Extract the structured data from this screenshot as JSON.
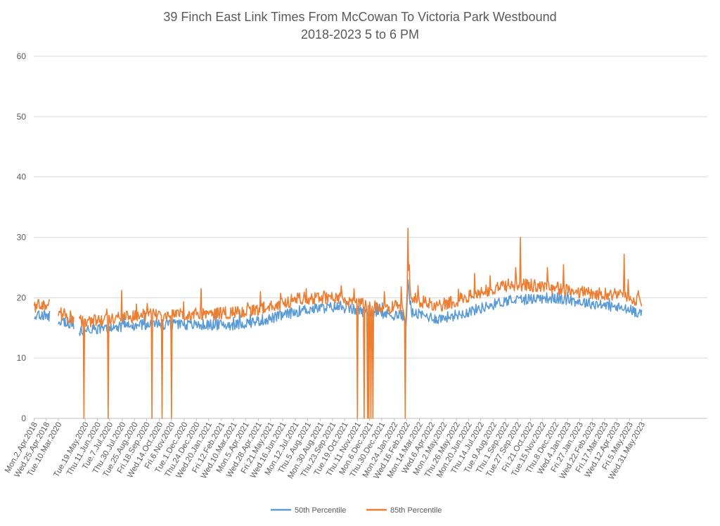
{
  "chart_data": {
    "type": "line",
    "title_lines": [
      "39 Finch East Link Times From McCowan To Victoria Park Westbound",
      "2018-2023 5 to 6 PM"
    ],
    "xlabel": "",
    "ylabel": "",
    "ylim": [
      0,
      60
    ],
    "yticks": [
      0,
      10,
      20,
      30,
      40,
      50,
      60
    ],
    "grid": true,
    "legend_position": "bottom-center",
    "x_count": 1000,
    "x_ticks": [
      {
        "i": 0,
        "label": "Mon.2.Apr.2018"
      },
      {
        "i": 18,
        "label": "Wed.25.Apr.2018"
      },
      {
        "i": 36,
        "label": "Tue.10.Mar.2020"
      },
      {
        "i": 76,
        "label": "Tue.19.May.2020"
      },
      {
        "i": 94,
        "label": "Thu.11.Jun.2020"
      },
      {
        "i": 112,
        "label": "Tue.7.Jul.2020"
      },
      {
        "i": 131,
        "label": "Thu.30.Jul.2020"
      },
      {
        "i": 149,
        "label": "Tue.25.Aug.2020"
      },
      {
        "i": 167,
        "label": "Fri.18.Sep.2020"
      },
      {
        "i": 186,
        "label": "Wed.14.Oct.2020"
      },
      {
        "i": 204,
        "label": "Fri.6.Nov.2020"
      },
      {
        "i": 223,
        "label": "Tue.1.Dec.2020"
      },
      {
        "i": 241,
        "label": "Thu.24.Dec.2020"
      },
      {
        "i": 259,
        "label": "Wed.20.Jan.2021"
      },
      {
        "i": 278,
        "label": "Fri.12.Feb.2021"
      },
      {
        "i": 296,
        "label": "Wed.10.Mar.2021"
      },
      {
        "i": 314,
        "label": "Mon.5.Apr.2021"
      },
      {
        "i": 333,
        "label": "Wed.28.Apr.2021"
      },
      {
        "i": 351,
        "label": "Fri.21.May.2021"
      },
      {
        "i": 369,
        "label": "Wed.16.Jun.2021"
      },
      {
        "i": 388,
        "label": "Mon.12.Jul.2021"
      },
      {
        "i": 406,
        "label": "Thu.5.Aug.2021"
      },
      {
        "i": 425,
        "label": "Mon.30.Aug.2021"
      },
      {
        "i": 443,
        "label": "Thu.23.Sep.2021"
      },
      {
        "i": 461,
        "label": "Tue.19.Oct.2021"
      },
      {
        "i": 480,
        "label": "Thu.11.Nov.2021"
      },
      {
        "i": 498,
        "label": "Mon.6.Dec.2021"
      },
      {
        "i": 516,
        "label": "Thu.30.Dec.2021"
      },
      {
        "i": 535,
        "label": "Mon.24.Jan.2022"
      },
      {
        "i": 553,
        "label": "Wed.16.Feb.2022"
      },
      {
        "i": 572,
        "label": "Mon.14.Mar.2022"
      },
      {
        "i": 590,
        "label": "Wed.6.Apr.2022"
      },
      {
        "i": 608,
        "label": "Mon.2.May.2022"
      },
      {
        "i": 627,
        "label": "Thu.26.May.2022"
      },
      {
        "i": 645,
        "label": "Mon.20.Jun.2022"
      },
      {
        "i": 663,
        "label": "Thu.14.Jul.2022"
      },
      {
        "i": 682,
        "label": "Tue.9.Aug.2022"
      },
      {
        "i": 700,
        "label": "Thu.1.Sep.2022"
      },
      {
        "i": 718,
        "label": "Tue.27.Sep.2022"
      },
      {
        "i": 737,
        "label": "Fri.21.Oct.2022"
      },
      {
        "i": 755,
        "label": "Tue.15.Nov.2022"
      },
      {
        "i": 774,
        "label": "Thu.8.Dec.2022"
      },
      {
        "i": 792,
        "label": "Wed.4.Jan.2023"
      },
      {
        "i": 810,
        "label": "Fri.27.Jan.2023"
      },
      {
        "i": 829,
        "label": "Wed.22.Feb.2023"
      },
      {
        "i": 847,
        "label": "Fri.17.Mar.2023"
      },
      {
        "i": 865,
        "label": "Wed.12.Apr.2023"
      },
      {
        "i": 884,
        "label": "Fri.5.May.2023"
      },
      {
        "i": 902,
        "label": "Wed.31.May.2023"
      }
    ],
    "gaps": [
      [
        23,
        36
      ],
      [
        59,
        67
      ]
    ],
    "series": [
      {
        "name": "50th Percentile",
        "color": "#5B9BD5",
        "baseline_knots": [
          [
            0,
            17
          ],
          [
            23,
            17
          ],
          [
            36,
            16.5
          ],
          [
            59,
            15.5
          ],
          [
            67,
            14.5
          ],
          [
            150,
            15.5
          ],
          [
            300,
            15.5
          ],
          [
            350,
            16.5
          ],
          [
            400,
            18
          ],
          [
            450,
            18.5
          ],
          [
            500,
            17.5
          ],
          [
            548,
            17
          ],
          [
            552,
            16
          ],
          [
            555,
            21
          ],
          [
            560,
            17.5
          ],
          [
            600,
            16.5
          ],
          [
            640,
            17.5
          ],
          [
            700,
            19.5
          ],
          [
            760,
            20
          ],
          [
            800,
            19.5
          ],
          [
            860,
            18.5
          ],
          [
            902,
            17.5
          ]
        ],
        "noise": 0.9,
        "spikes": [
          [
            555,
            23
          ],
          [
            556,
            22
          ],
          [
            559,
            19.5
          ]
        ],
        "dropouts": []
      },
      {
        "name": "85th Percentile",
        "color": "#ED7D31",
        "baseline_knots": [
          [
            0,
            18.5
          ],
          [
            23,
            19
          ],
          [
            36,
            17.5
          ],
          [
            59,
            16.5
          ],
          [
            67,
            16
          ],
          [
            150,
            17
          ],
          [
            300,
            17.5
          ],
          [
            350,
            18.5
          ],
          [
            400,
            20
          ],
          [
            450,
            20
          ],
          [
            500,
            18.5
          ],
          [
            548,
            18.5
          ],
          [
            552,
            17
          ],
          [
            555,
            25
          ],
          [
            560,
            20
          ],
          [
            600,
            18.5
          ],
          [
            640,
            20
          ],
          [
            700,
            22
          ],
          [
            760,
            22
          ],
          [
            800,
            21
          ],
          [
            860,
            20.5
          ],
          [
            902,
            19.5
          ]
        ],
        "noise": 1.1,
        "spikes": [
          [
            555,
            31.5
          ],
          [
            556,
            24.5
          ],
          [
            557,
            25.5
          ],
          [
            130,
            21.2
          ],
          [
            248,
            21.5
          ],
          [
            336,
            21
          ],
          [
            404,
            21.5
          ],
          [
            456,
            22
          ],
          [
            475,
            21.5
          ],
          [
            520,
            21
          ],
          [
            545,
            21.8
          ],
          [
            570,
            22
          ],
          [
            654,
            24
          ],
          [
            715,
            25
          ],
          [
            722,
            30
          ],
          [
            762,
            25
          ],
          [
            786,
            25.5
          ],
          [
            876,
            27.2
          ],
          [
            882,
            23
          ]
        ],
        "dropouts": [
          74,
          110,
          175,
          190,
          204,
          480,
          490,
          495,
          497,
          500,
          503,
          551
        ]
      }
    ]
  }
}
